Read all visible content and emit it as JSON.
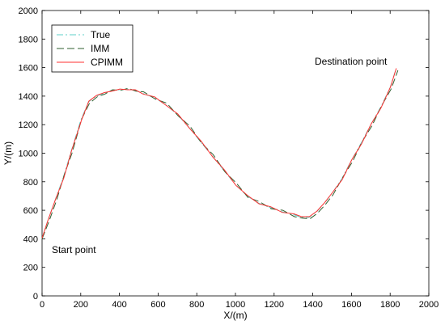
{
  "chart_data": {
    "type": "line",
    "title": "",
    "xlabel": "X/(m)",
    "ylabel": "Y/(m)",
    "xlim": [
      0,
      2000
    ],
    "ylim": [
      0,
      2000
    ],
    "xticks": [
      0,
      200,
      400,
      600,
      800,
      1000,
      1200,
      1400,
      1600,
      1800,
      2000
    ],
    "yticks": [
      0,
      200,
      400,
      600,
      800,
      1000,
      1200,
      1400,
      1600,
      1800,
      2000
    ],
    "grid": false,
    "legend_position": "top-left",
    "annotations": [
      {
        "text": "Start point",
        "x": 50,
        "y": 300
      },
      {
        "text": "Destination point",
        "x": 1410,
        "y": 1620
      }
    ],
    "series": [
      {
        "name": "True",
        "color": "#5fd0c8",
        "style": "dashdot",
        "x": [
          0,
          30,
          70,
          110,
          150,
          200,
          240,
          280,
          320,
          360,
          400,
          440,
          480,
          520,
          580,
          640,
          700,
          760,
          820,
          880,
          940,
          1000,
          1060,
          1120,
          1180,
          1240,
          1300,
          1340,
          1380,
          1420,
          1460,
          1500,
          1550,
          1600,
          1650,
          1700,
          1750,
          1800,
          1830
        ],
        "y": [
          400,
          530,
          680,
          830,
          1010,
          1230,
          1360,
          1400,
          1420,
          1440,
          1445,
          1450,
          1440,
          1420,
          1390,
          1340,
          1270,
          1180,
          1080,
          980,
          880,
          780,
          700,
          650,
          620,
          590,
          570,
          550,
          550,
          590,
          650,
          720,
          820,
          950,
          1070,
          1200,
          1320,
          1460,
          1590
        ]
      },
      {
        "name": "IMM",
        "color": "#2f5f2f",
        "style": "dashed",
        "x": [
          0,
          35,
          75,
          115,
          155,
          205,
          245,
          285,
          325,
          365,
          405,
          445,
          485,
          525,
          585,
          645,
          705,
          765,
          825,
          885,
          945,
          1005,
          1065,
          1125,
          1185,
          1245,
          1305,
          1345,
          1385,
          1425,
          1465,
          1505,
          1555,
          1605,
          1655,
          1705,
          1755,
          1805,
          1840
        ],
        "y": [
          400,
          520,
          670,
          850,
          1000,
          1240,
          1350,
          1395,
          1415,
          1445,
          1440,
          1455,
          1435,
          1430,
          1380,
          1350,
          1260,
          1190,
          1070,
          990,
          870,
          790,
          690,
          660,
          610,
          600,
          555,
          545,
          540,
          580,
          640,
          710,
          830,
          940,
          1080,
          1190,
          1330,
          1450,
          1580
        ]
      },
      {
        "name": "CPIMM",
        "color": "#ff3030",
        "style": "solid",
        "x": [
          0,
          32,
          72,
          112,
          152,
          202,
          242,
          282,
          322,
          362,
          402,
          442,
          482,
          522,
          582,
          642,
          702,
          762,
          822,
          882,
          942,
          1002,
          1062,
          1122,
          1182,
          1242,
          1302,
          1342,
          1382,
          1422,
          1462,
          1502,
          1552,
          1602,
          1652,
          1702,
          1752,
          1802,
          1832
        ],
        "y": [
          405,
          535,
          685,
          825,
          1015,
          1225,
          1365,
          1405,
          1425,
          1435,
          1450,
          1445,
          1445,
          1415,
          1395,
          1335,
          1275,
          1175,
          1085,
          975,
          885,
          775,
          705,
          645,
          625,
          585,
          575,
          555,
          555,
          595,
          655,
          725,
          815,
          955,
          1065,
          1205,
          1315,
          1465,
          1595
        ]
      }
    ]
  }
}
